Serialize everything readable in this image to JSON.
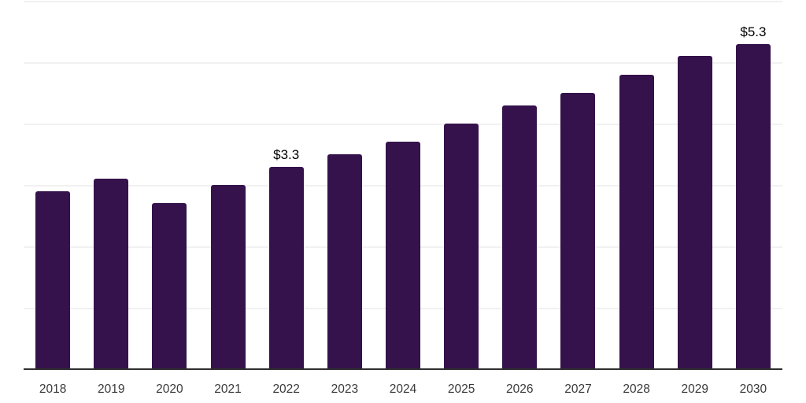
{
  "chart_data": {
    "type": "bar",
    "title": "",
    "xlabel": "",
    "ylabel": "",
    "categories": [
      "2018",
      "2019",
      "2020",
      "2021",
      "2022",
      "2023",
      "2024",
      "2025",
      "2026",
      "2027",
      "2028",
      "2029",
      "2030"
    ],
    "values": [
      2.9,
      3.1,
      2.7,
      3.0,
      3.3,
      3.5,
      3.7,
      4.0,
      4.3,
      4.5,
      4.8,
      5.1,
      5.3
    ],
    "value_labels": {
      "2022": "$3.3",
      "2030": "$5.3"
    },
    "ylim": [
      0,
      6
    ],
    "gridline_step": 1,
    "grid": "horizontal-faint",
    "legend": "none",
    "y_axis_tick_labels_visible": false,
    "colors": {
      "bar": "#35124B",
      "axis_line": "#2F2F2F",
      "gridline": "#F1F1F1",
      "tick_label": "#3A3A3A",
      "value_label": "#000000",
      "background": "#FFFFFF"
    }
  }
}
